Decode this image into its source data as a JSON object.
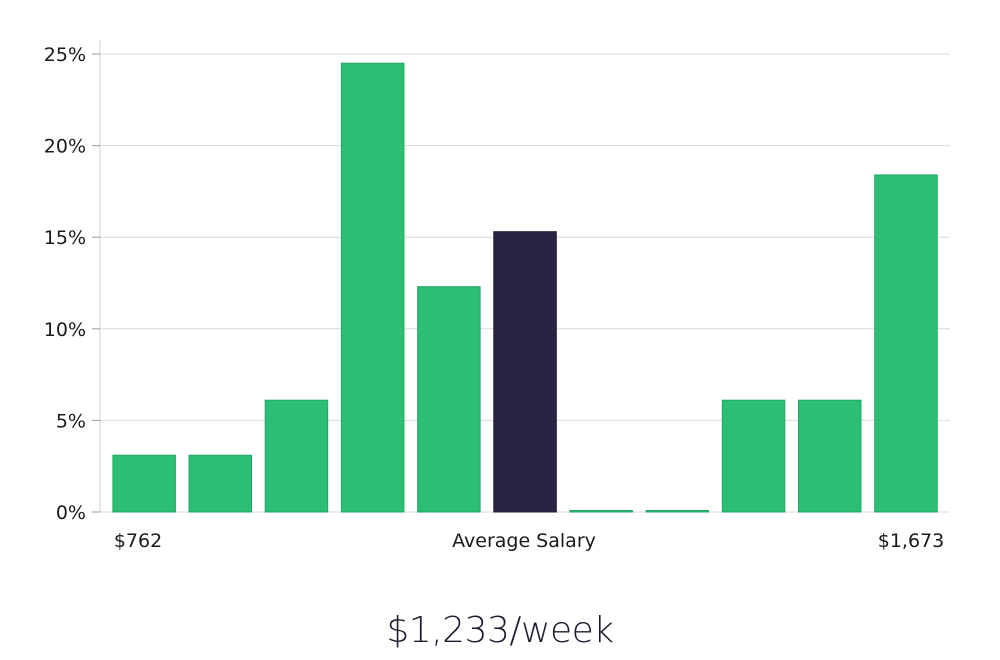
{
  "colors": {
    "bar": "#2abf74",
    "highlight": "#272543",
    "grid": "#d9d9d9",
    "axis": "#cccccc"
  },
  "chart_data": {
    "type": "bar",
    "categories": [
      "1",
      "2",
      "3",
      "4",
      "5",
      "6",
      "7",
      "8",
      "9",
      "10",
      "11"
    ],
    "values": [
      3.1,
      3.1,
      6.1,
      24.5,
      12.3,
      15.3,
      0,
      0,
      6.1,
      6.1,
      18.4
    ],
    "highlight_index": 5,
    "ylim": [
      0,
      25
    ],
    "yticks": [
      0,
      5,
      10,
      15,
      20,
      25
    ],
    "ytick_format": "{v}%",
    "grid": true,
    "x_labels": {
      "min": "$762",
      "center": "Average Salary",
      "max": "$1,673"
    },
    "legend": "none"
  },
  "salary_readout": "$1,233/week"
}
